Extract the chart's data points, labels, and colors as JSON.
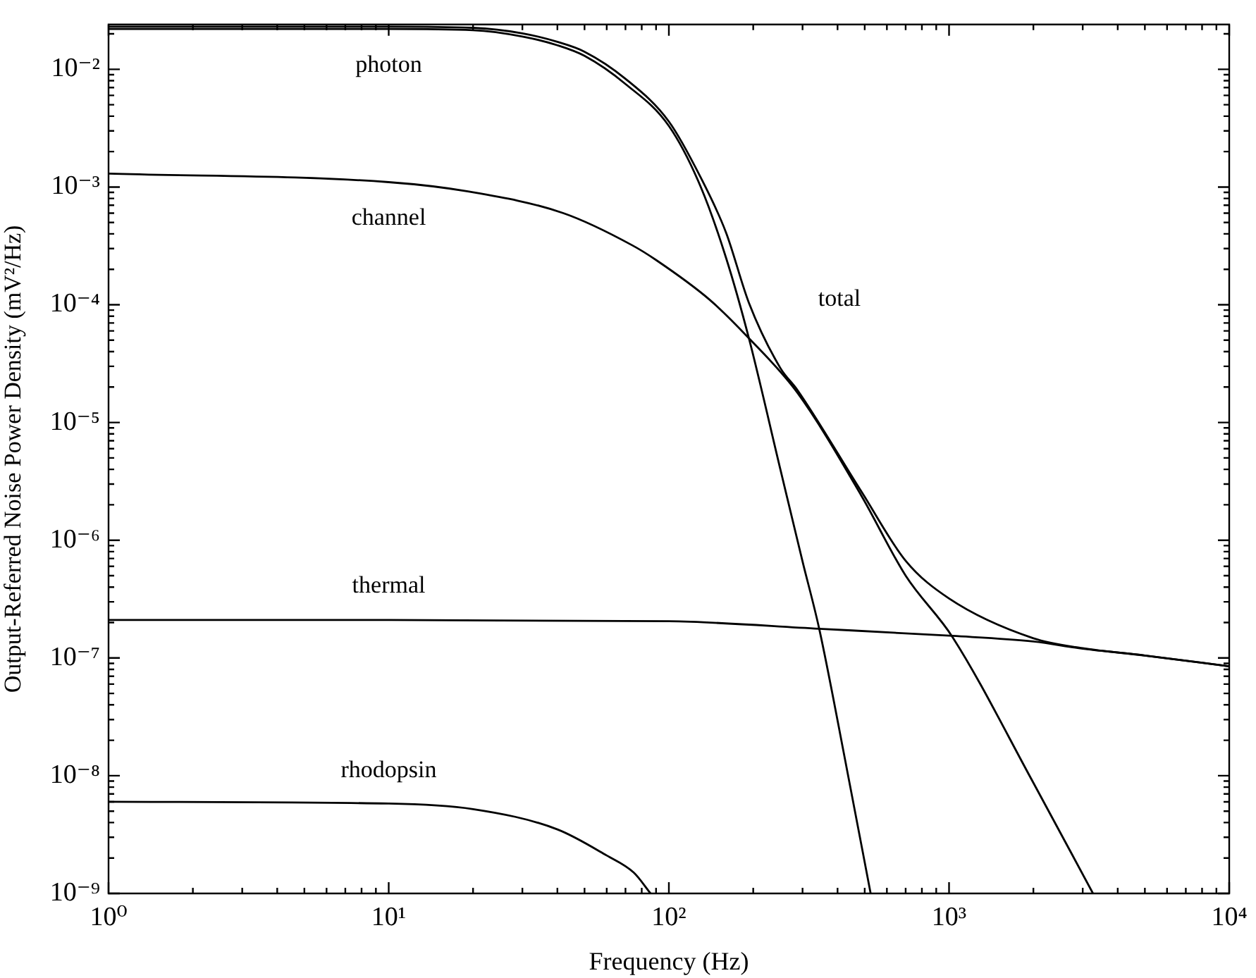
{
  "chart_data": {
    "type": "line",
    "xlabel": "Frequency (Hz)",
    "ylabel": "Output-Referred Noise Power Density (mV²/Hz)",
    "log": "xy",
    "marker": "none",
    "line_style": "solid",
    "xlim": [
      1,
      10000
    ],
    "ylim": [
      1e-09,
      0.024
    ],
    "xticks": [
      {
        "value": 1,
        "label": "10⁰"
      },
      {
        "value": 2,
        "label": null
      },
      {
        "value": 3,
        "label": null
      },
      {
        "value": 4,
        "label": null
      },
      {
        "value": 5,
        "label": null
      },
      {
        "value": 6,
        "label": null
      },
      {
        "value": 7,
        "label": null
      },
      {
        "value": 8,
        "label": null
      },
      {
        "value": 9,
        "label": null
      },
      {
        "value": 10,
        "label": "10¹"
      },
      {
        "value": 20,
        "label": null
      },
      {
        "value": 30,
        "label": null
      },
      {
        "value": 40,
        "label": null
      },
      {
        "value": 50,
        "label": null
      },
      {
        "value": 60,
        "label": null
      },
      {
        "value": 70,
        "label": null
      },
      {
        "value": 80,
        "label": null
      },
      {
        "value": 90,
        "label": null
      },
      {
        "value": 100,
        "label": "10²"
      },
      {
        "value": 200,
        "label": null
      },
      {
        "value": 300,
        "label": null
      },
      {
        "value": 400,
        "label": null
      },
      {
        "value": 500,
        "label": null
      },
      {
        "value": 600,
        "label": null
      },
      {
        "value": 700,
        "label": null
      },
      {
        "value": 800,
        "label": null
      },
      {
        "value": 900,
        "label": null
      },
      {
        "value": 1000,
        "label": "10³"
      },
      {
        "value": 2000,
        "label": null
      },
      {
        "value": 3000,
        "label": null
      },
      {
        "value": 4000,
        "label": null
      },
      {
        "value": 5000,
        "label": null
      },
      {
        "value": 6000,
        "label": null
      },
      {
        "value": 7000,
        "label": null
      },
      {
        "value": 8000,
        "label": null
      },
      {
        "value": 9000,
        "label": null
      },
      {
        "value": 10000,
        "label": "10⁴"
      }
    ],
    "yticks": [
      {
        "value": 1e-09,
        "label": "10⁻⁹"
      },
      {
        "value": 2e-09,
        "label": null
      },
      {
        "value": 3e-09,
        "label": null
      },
      {
        "value": 4e-09,
        "label": null
      },
      {
        "value": 5e-09,
        "label": null
      },
      {
        "value": 6e-09,
        "label": null
      },
      {
        "value": 7e-09,
        "label": null
      },
      {
        "value": 8e-09,
        "label": null
      },
      {
        "value": 9e-09,
        "label": null
      },
      {
        "value": 1e-08,
        "label": "10⁻⁸"
      },
      {
        "value": 2e-08,
        "label": null
      },
      {
        "value": 3e-08,
        "label": null
      },
      {
        "value": 4e-08,
        "label": null
      },
      {
        "value": 5e-08,
        "label": null
      },
      {
        "value": 6e-08,
        "label": null
      },
      {
        "value": 7e-08,
        "label": null
      },
      {
        "value": 8e-08,
        "label": null
      },
      {
        "value": 9e-08,
        "label": null
      },
      {
        "value": 1e-07,
        "label": "10⁻⁷"
      },
      {
        "value": 2e-07,
        "label": null
      },
      {
        "value": 3e-07,
        "label": null
      },
      {
        "value": 4e-07,
        "label": null
      },
      {
        "value": 5e-07,
        "label": null
      },
      {
        "value": 6e-07,
        "label": null
      },
      {
        "value": 7e-07,
        "label": null
      },
      {
        "value": 8e-07,
        "label": null
      },
      {
        "value": 9e-07,
        "label": null
      },
      {
        "value": 1e-06,
        "label": "10⁻⁶"
      },
      {
        "value": 2e-06,
        "label": null
      },
      {
        "value": 3e-06,
        "label": null
      },
      {
        "value": 4e-06,
        "label": null
      },
      {
        "value": 5e-06,
        "label": null
      },
      {
        "value": 6e-06,
        "label": null
      },
      {
        "value": 7e-06,
        "label": null
      },
      {
        "value": 8e-06,
        "label": null
      },
      {
        "value": 9e-06,
        "label": null
      },
      {
        "value": 1e-05,
        "label": "10⁻⁵"
      },
      {
        "value": 2e-05,
        "label": null
      },
      {
        "value": 3e-05,
        "label": null
      },
      {
        "value": 4e-05,
        "label": null
      },
      {
        "value": 5e-05,
        "label": null
      },
      {
        "value": 6e-05,
        "label": null
      },
      {
        "value": 7e-05,
        "label": null
      },
      {
        "value": 8e-05,
        "label": null
      },
      {
        "value": 9e-05,
        "label": null
      },
      {
        "value": 0.0001,
        "label": "10⁻⁴"
      },
      {
        "value": 0.0002,
        "label": null
      },
      {
        "value": 0.0003,
        "label": null
      },
      {
        "value": 0.0004,
        "label": null
      },
      {
        "value": 0.0005,
        "label": null
      },
      {
        "value": 0.0006,
        "label": null
      },
      {
        "value": 0.0007,
        "label": null
      },
      {
        "value": 0.0008,
        "label": null
      },
      {
        "value": 0.0009,
        "label": null
      },
      {
        "value": 0.001,
        "label": "10⁻³"
      },
      {
        "value": 0.002,
        "label": null
      },
      {
        "value": 0.003,
        "label": null
      },
      {
        "value": 0.004,
        "label": null
      },
      {
        "value": 0.005,
        "label": null
      },
      {
        "value": 0.006,
        "label": null
      },
      {
        "value": 0.007,
        "label": null
      },
      {
        "value": 0.008,
        "label": null
      },
      {
        "value": 0.009,
        "label": null
      },
      {
        "value": 0.01,
        "label": "10⁻²"
      },
      {
        "value": 0.02,
        "label": null
      }
    ],
    "series": [
      {
        "name": "photon",
        "color": "#000000",
        "x": [
          1,
          10,
          20,
          30,
          40,
          50,
          70,
          100,
          130,
          160,
          193,
          250,
          300,
          344,
          430,
          525
        ],
        "values": [
          0.022,
          0.022,
          0.0215,
          0.019,
          0.016,
          0.013,
          0.0075,
          0.0033,
          0.001,
          0.00025,
          5.2e-05,
          4e-06,
          6.6e-07,
          1.77e-07,
          1.2e-08,
          1e-09
        ]
      },
      {
        "name": "channel",
        "color": "#000000",
        "x": [
          1,
          10,
          19,
          42,
          74,
          90,
          140,
          193,
          287,
          486,
          700,
          1030,
          2000,
          3264
        ],
        "values": [
          0.0013,
          0.0011,
          0.00092,
          0.0006,
          0.00032,
          0.00024,
          0.00011,
          5.2e-05,
          1.8e-05,
          2.4e-06,
          5e-07,
          1.5e-07,
          8.7e-09,
          1e-09
        ]
      },
      {
        "name": "total",
        "color": "#000000",
        "x": [
          1,
          10,
          20,
          30,
          40,
          50,
          70,
          100,
          130,
          160,
          193,
          250,
          287,
          486,
          700,
          1000,
          2000,
          3000,
          5000,
          10000
        ],
        "values": [
          0.023,
          0.023,
          0.0225,
          0.0202,
          0.0171,
          0.0141,
          0.0083,
          0.0036,
          0.0012,
          0.00041,
          0.000104,
          2.9e-05,
          1.9e-05,
          2.6e-06,
          6.7e-07,
          3.2e-07,
          1.47e-07,
          1.21e-07,
          1.05e-07,
          8.5e-08
        ]
      },
      {
        "name": "thermal",
        "color": "#000000",
        "x": [
          1,
          10,
          100,
          344,
          1030,
          2000,
          3000,
          5000,
          10000
        ],
        "values": [
          2.1e-07,
          2.1e-07,
          2.05e-07,
          1.77e-07,
          1.54e-07,
          1.38e-07,
          1.2e-07,
          1.05e-07,
          8.5e-08
        ]
      },
      {
        "name": "rhodopsin",
        "color": "#000000",
        "x": [
          1,
          10,
          20,
          40,
          60,
          75,
          86
        ],
        "values": [
          6e-09,
          5.8e-09,
          5.2e-09,
          3.5e-09,
          2.1e-09,
          1.5e-09,
          1e-09
        ]
      }
    ]
  }
}
